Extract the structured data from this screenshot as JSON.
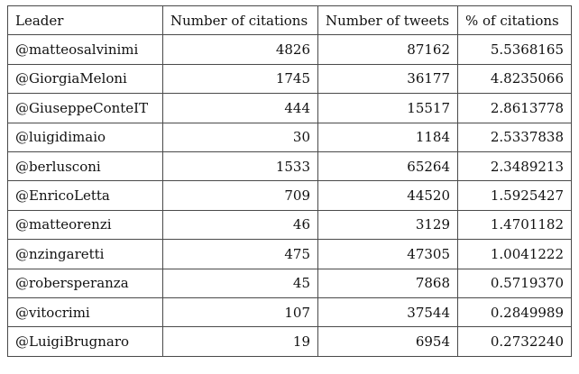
{
  "table": {
    "headers": [
      "Leader",
      "Number of citations",
      "Number of tweets",
      "% of citations"
    ],
    "rows": [
      [
        "@matteosalvinimi",
        "4826",
        "87162",
        "5.5368165"
      ],
      [
        "@GiorgiaMeloni",
        "1745",
        "36177",
        "4.8235066"
      ],
      [
        "@GiuseppeConteIT",
        "444",
        "15517",
        "2.8613778"
      ],
      [
        "@luigidimaio",
        "30",
        "1184",
        "2.5337838"
      ],
      [
        "@berlusconi",
        "1533",
        "65264",
        "2.3489213"
      ],
      [
        "@EnricoLetta",
        "709",
        "44520",
        "1.5925427"
      ],
      [
        "@matteorenzi",
        "46",
        "3129",
        "1.4701182"
      ],
      [
        "@nzingaretti",
        "475",
        "47305",
        "1.0041222"
      ],
      [
        "@robersperanza",
        "45",
        "7868",
        "0.5719370"
      ],
      [
        "@vitocrimi",
        "107",
        "37544",
        "0.2849989"
      ],
      [
        "@LuigiBrugnaro",
        "19",
        "6954",
        "0.2732240"
      ]
    ]
  }
}
